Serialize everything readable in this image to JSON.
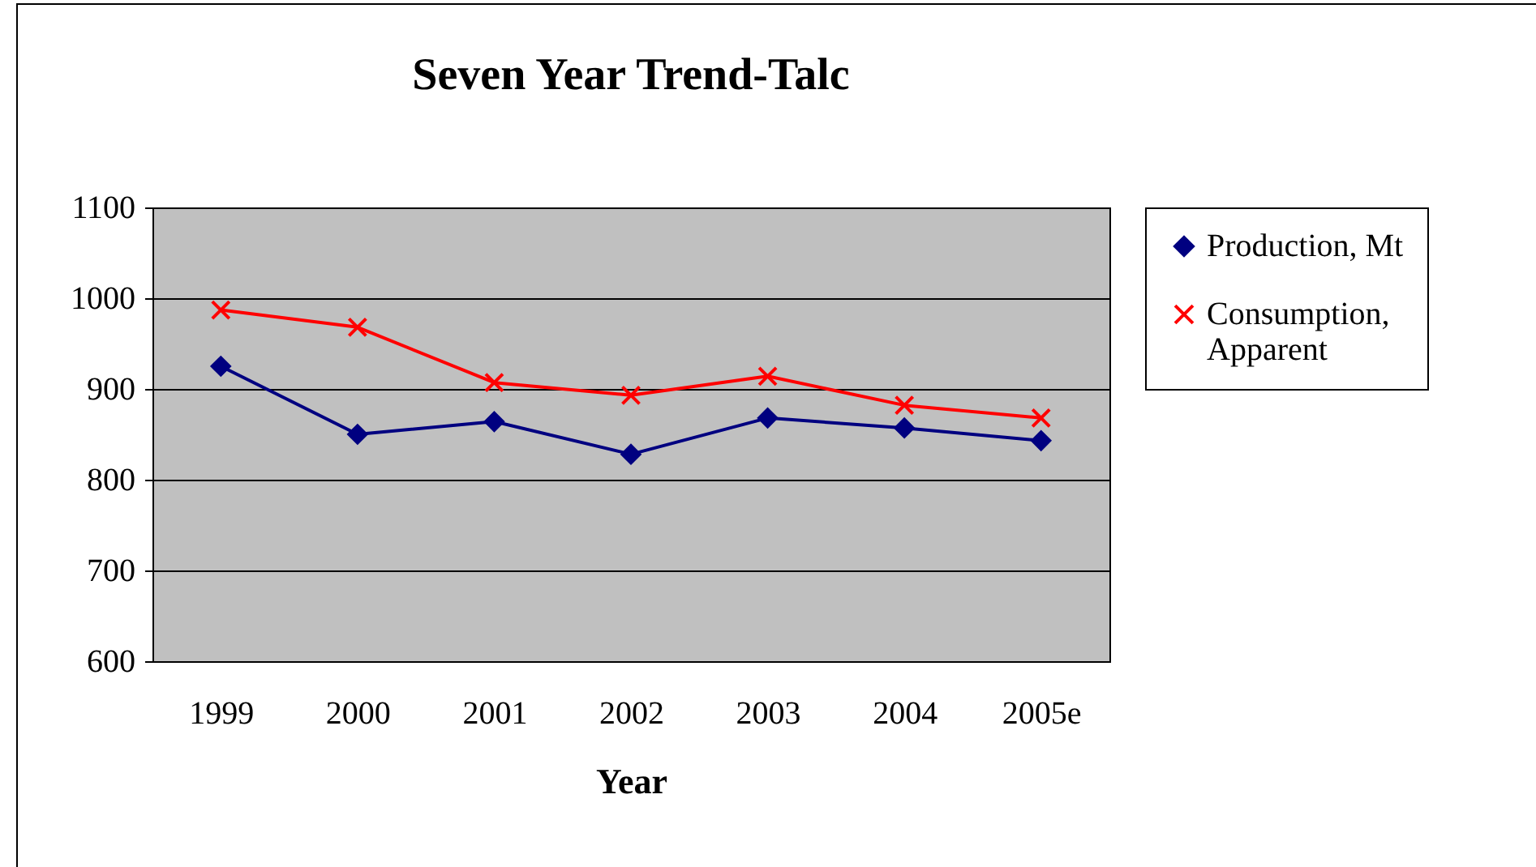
{
  "chart_data": {
    "type": "line",
    "title": "Seven Year Trend-Talc",
    "xlabel": "Year",
    "categories": [
      "1999",
      "2000",
      "2001",
      "2002",
      "2003",
      "2004",
      "2005e"
    ],
    "series": [
      {
        "name": "Production, Mt",
        "color": "#000080",
        "marker": "diamond",
        "values": [
          925,
          850,
          864,
          828,
          868,
          857,
          843
        ]
      },
      {
        "name": "Consumption, Apparent",
        "color": "#ff0000",
        "marker": "cross",
        "values": [
          987,
          968,
          907,
          893,
          914,
          882,
          868
        ]
      }
    ],
    "ylim": [
      600,
      1100
    ],
    "yticks": [
      600,
      700,
      800,
      900,
      1000,
      1100
    ],
    "grid": "y",
    "legend": "right",
    "line_style": "solid"
  }
}
